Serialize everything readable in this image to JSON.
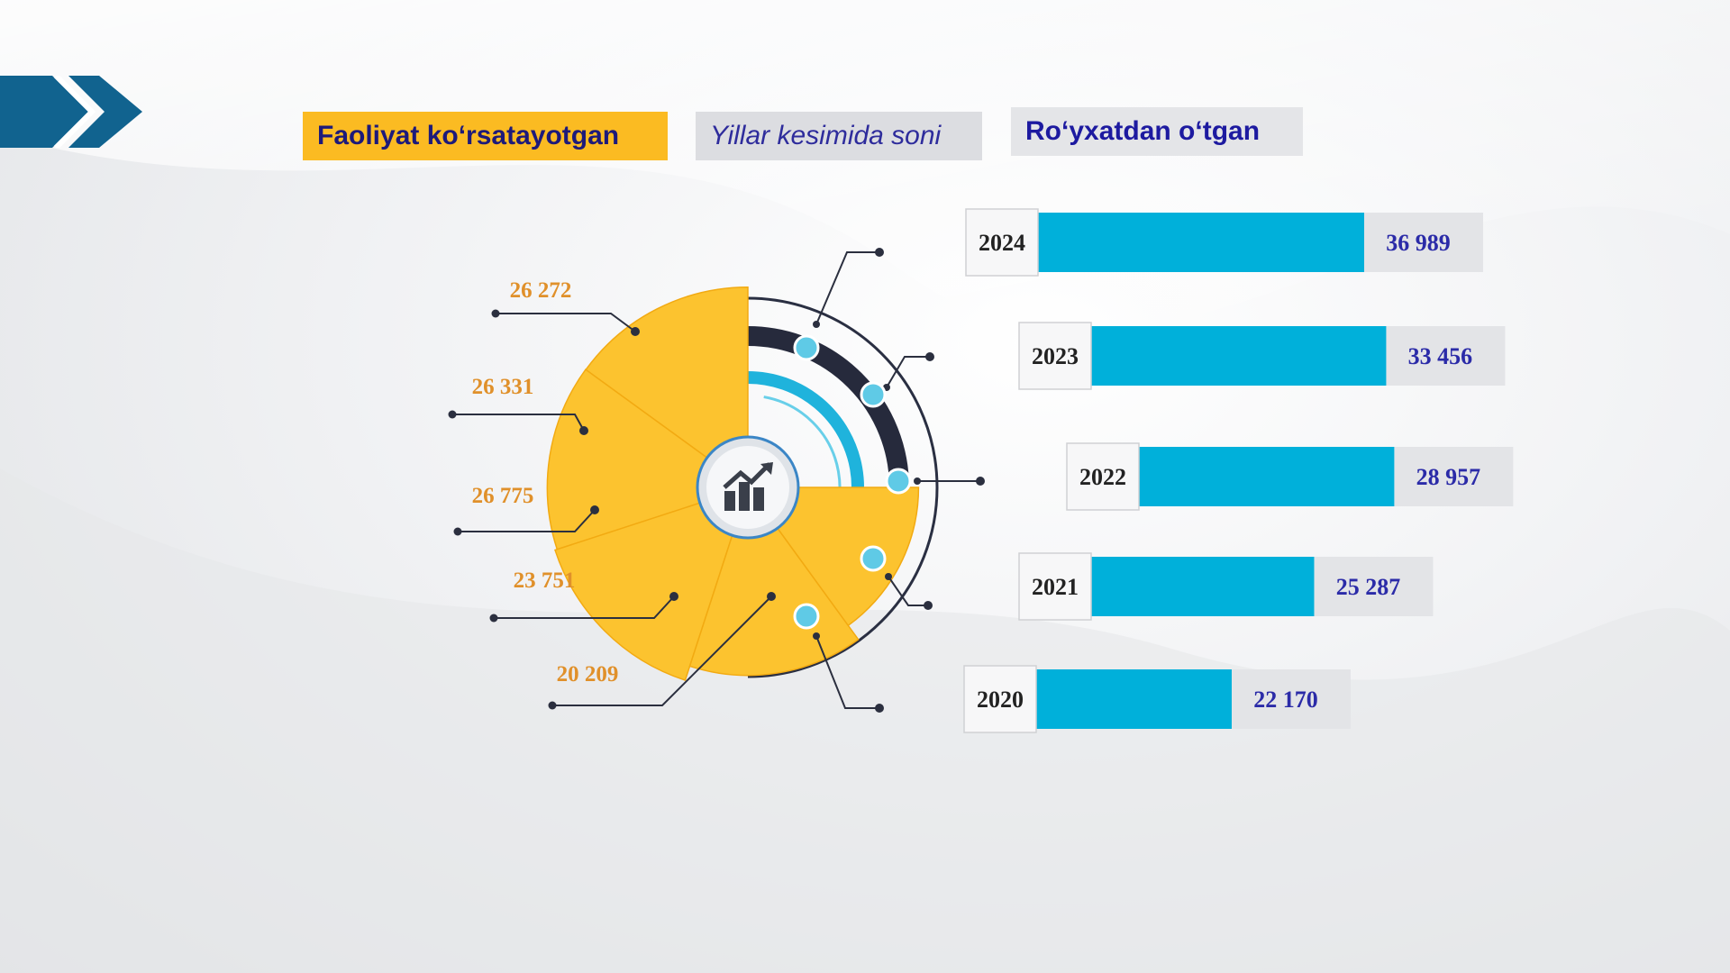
{
  "legend": {
    "active": "Faoliyat ko‘rsatayotgan",
    "by_years": "Yillar kesimida soni",
    "registered": "Ro‘yxatdan o‘tgan"
  },
  "colors": {
    "active": "#fcc32f",
    "registered": "#00b0da",
    "active_label": "#e0902a",
    "registered_label": "#2b2ba8",
    "year_label": "#222222"
  },
  "icons": [
    "double-chevron-icon",
    "growth-chart-icon"
  ],
  "chart_data": {
    "type": "bar",
    "categories": [
      "2024",
      "2023",
      "2022",
      "2021",
      "2020"
    ],
    "series": [
      {
        "name": "Faoliyat ko‘rsatayotgan",
        "values": [
          26272,
          26331,
          26775,
          23751,
          20209
        ]
      },
      {
        "name": "Ro‘yxatdan o‘tgan",
        "values": [
          36989,
          33456,
          28957,
          25287,
          22170
        ]
      }
    ],
    "active_labels": [
      "26 272",
      "26 331",
      "26 775",
      "23 751",
      "20 209"
    ],
    "registered_labels": [
      "36 989",
      "33 456",
      "28 957",
      "25 287",
      "22 170"
    ],
    "title": "",
    "legend": "top"
  }
}
